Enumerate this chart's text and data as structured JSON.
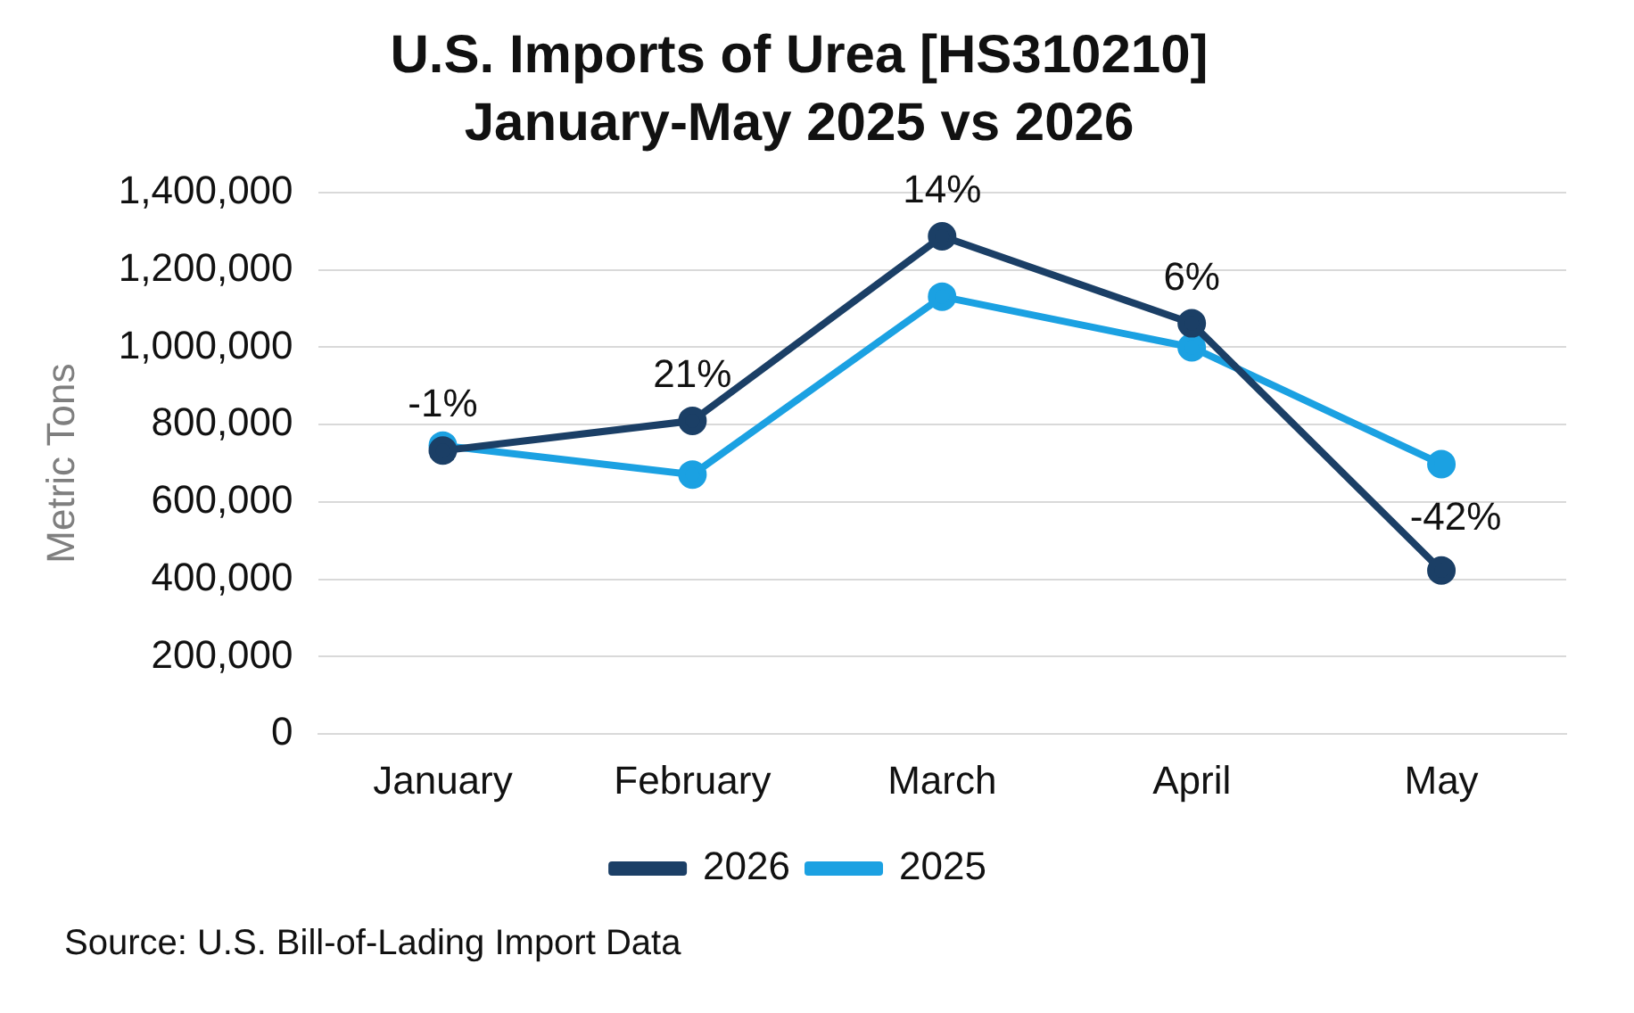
{
  "chart_data": {
    "type": "line",
    "title": "U.S. Imports of Urea [HS310210]",
    "subtitle": "January-May 2025 vs 2026",
    "ylabel": "Metric Tons",
    "categories": [
      "January",
      "February",
      "March",
      "April",
      "May"
    ],
    "series": [
      {
        "name": "2026",
        "color": "#1b3f66",
        "values": [
          733000,
          810000,
          1287000,
          1062000,
          423000
        ]
      },
      {
        "name": "2025",
        "color": "#1ba1e2",
        "values": [
          746000,
          671000,
          1131000,
          1000000,
          698000
        ]
      }
    ],
    "ylim": [
      0,
      1400000
    ],
    "yticks": [
      {
        "value": 0,
        "label": "0"
      },
      {
        "value": 200000,
        "label": "200,000"
      },
      {
        "value": 400000,
        "label": "400,000"
      },
      {
        "value": 600000,
        "label": "600,000"
      },
      {
        "value": 800000,
        "label": "800,000"
      },
      {
        "value": 1000000,
        "label": "1,000,000"
      },
      {
        "value": 1200000,
        "label": "1,200,000"
      },
      {
        "value": 1400000,
        "label": "1,400,000"
      }
    ],
    "grid": "y",
    "legend": "bottom",
    "marker": "circle",
    "line_style": "solid",
    "annotations": [
      {
        "text": "-1%",
        "x": "January",
        "y": 733000
      },
      {
        "text": "21%",
        "x": "February",
        "y": 810000
      },
      {
        "text": "14%",
        "x": "March",
        "y": 1287000
      },
      {
        "text": "6%",
        "x": "April",
        "y": 1062000
      },
      {
        "text": "-42%",
        "x": "May",
        "y": 423000
      },
      "Source: U.S. Bill-of-Lading Import Data"
    ]
  }
}
